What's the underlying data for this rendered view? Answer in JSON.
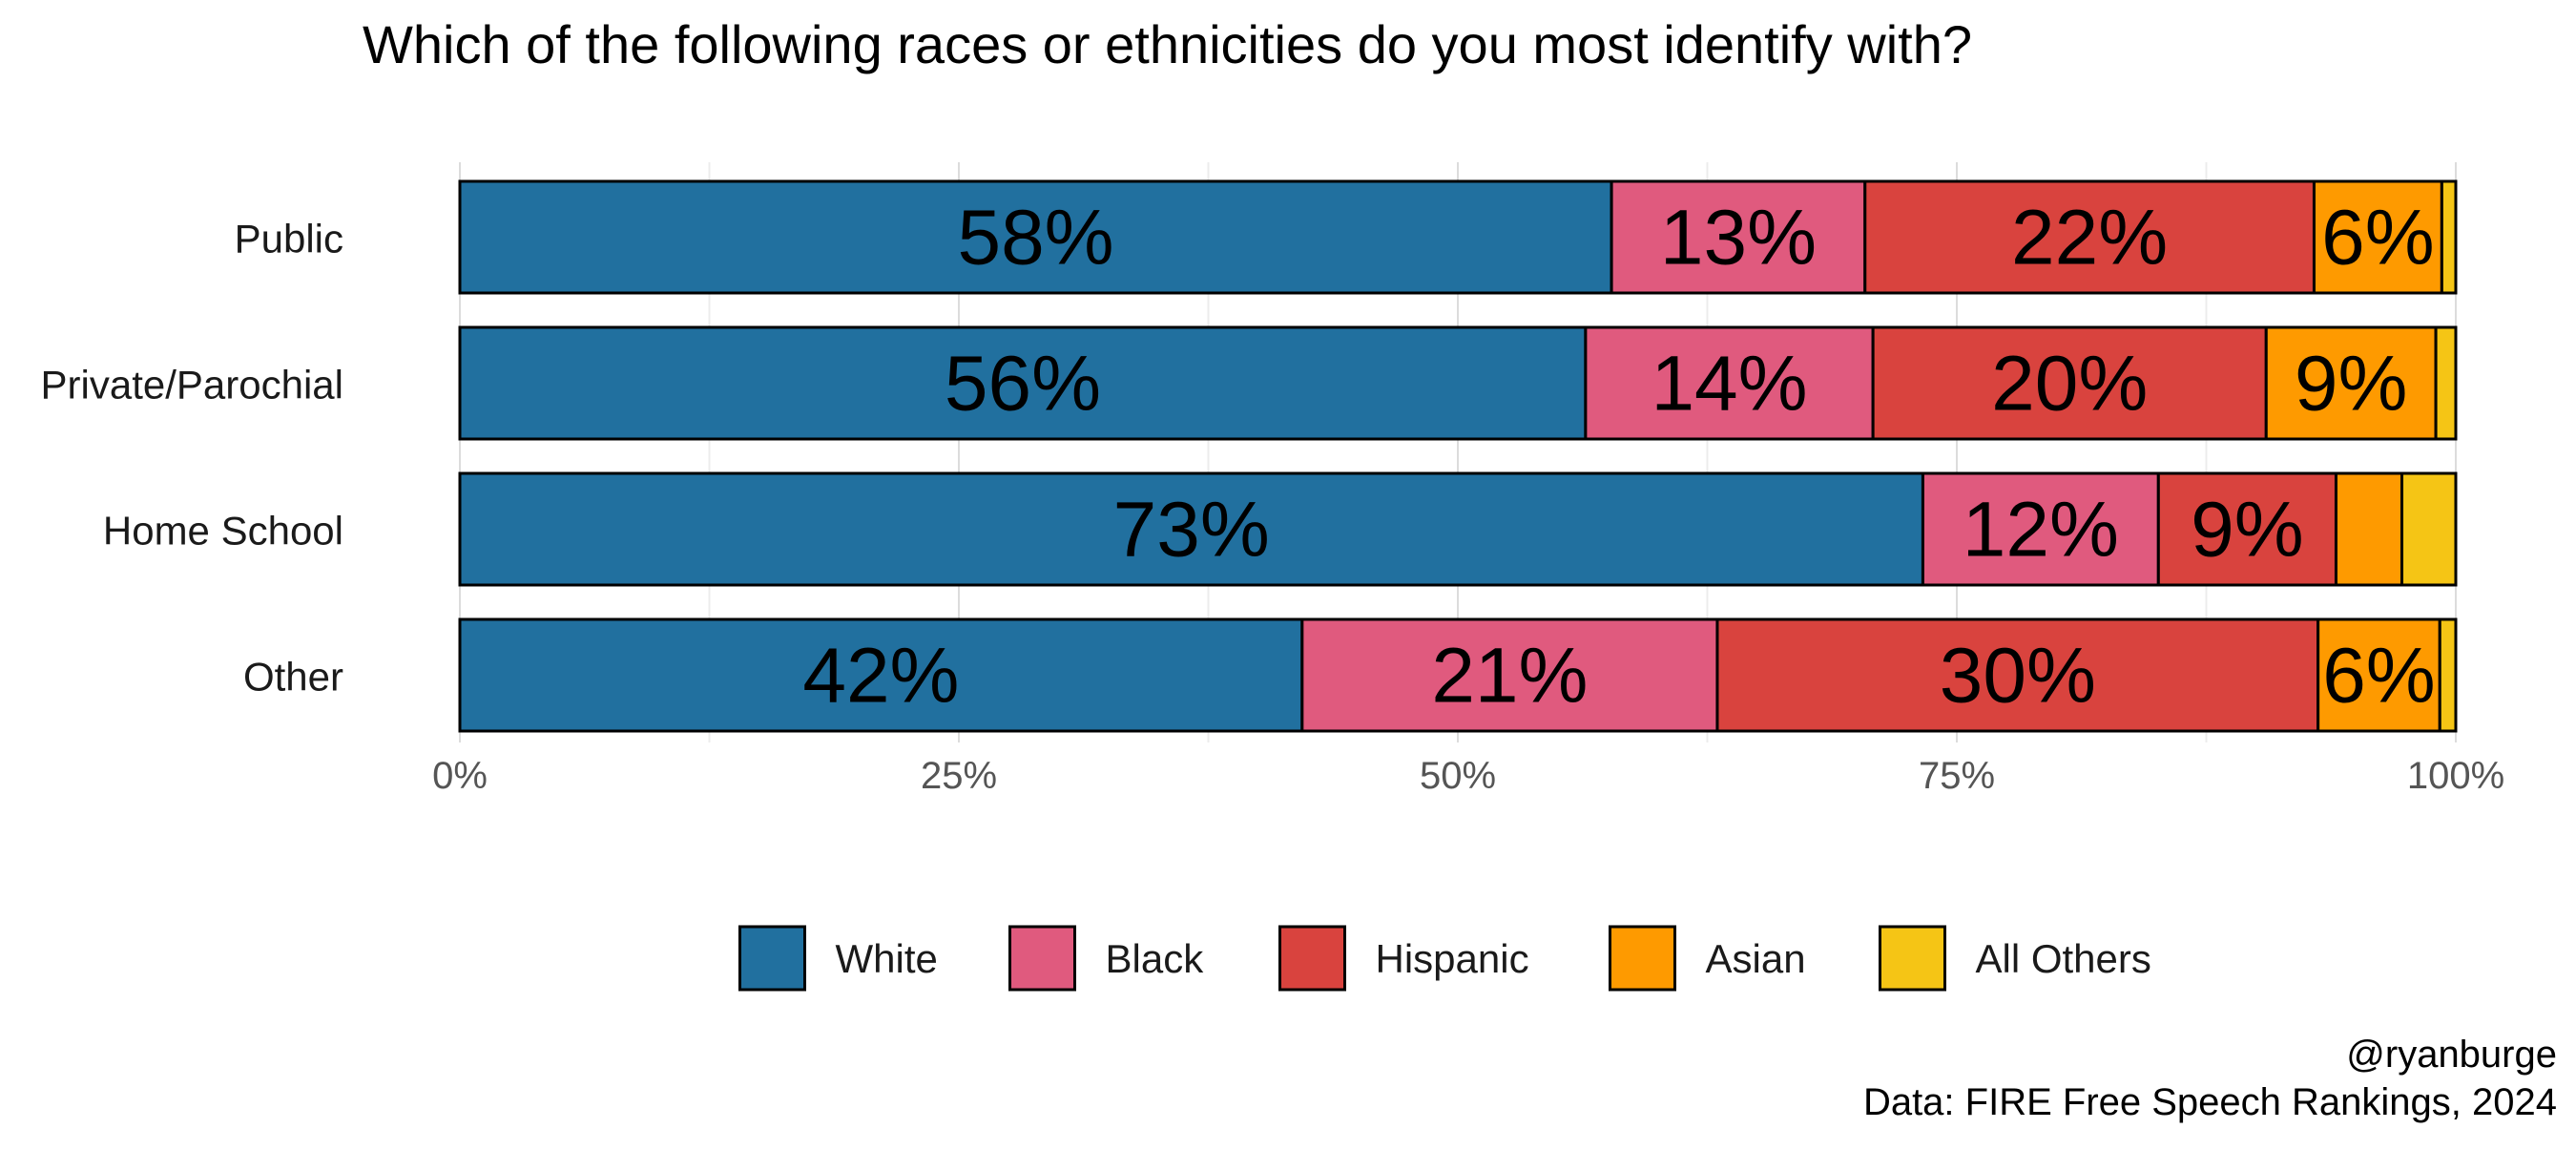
{
  "chart_data": {
    "type": "bar",
    "orientation": "horizontal",
    "stacked": true,
    "title": "Which of the following races or ethnicities do you most identify with?",
    "categories": [
      "Public",
      "Private/Parochial",
      "Home School",
      "Other"
    ],
    "series": [
      {
        "name": "White",
        "color": "#21709F",
        "values": [
          0.577,
          0.564,
          0.733,
          0.422
        ],
        "labels": [
          "58%",
          "56%",
          "73%",
          "42%"
        ]
      },
      {
        "name": "Black",
        "color": "#E05A7E",
        "values": [
          0.127,
          0.144,
          0.118,
          0.208
        ],
        "labels": [
          "13%",
          "14%",
          "12%",
          "21%"
        ]
      },
      {
        "name": "Hispanic",
        "color": "#D9433E",
        "values": [
          0.225,
          0.197,
          0.089,
          0.301
        ],
        "labels": [
          "22%",
          "20%",
          "9%",
          "30%"
        ]
      },
      {
        "name": "Asian",
        "color": "#FE9A00",
        "values": [
          0.064,
          0.085,
          0.033,
          0.061
        ],
        "labels": [
          "6%",
          "9%",
          "",
          "6%"
        ]
      },
      {
        "name": "All Others",
        "color": "#F5C515",
        "values": [
          0.007,
          0.01,
          0.027,
          0.008
        ],
        "labels": [
          "",
          "",
          "",
          ""
        ]
      }
    ],
    "xlim": [
      0,
      1
    ],
    "xticks": [
      0,
      0.25,
      0.5,
      0.75,
      1
    ],
    "xtick_labels": [
      "0%",
      "25%",
      "50%",
      "75%",
      "100%"
    ],
    "grid": true,
    "legend_position": "bottom"
  },
  "attribution": {
    "handle": "@ryanburge",
    "source": "Data: FIRE Free Speech Rankings, 2024"
  }
}
